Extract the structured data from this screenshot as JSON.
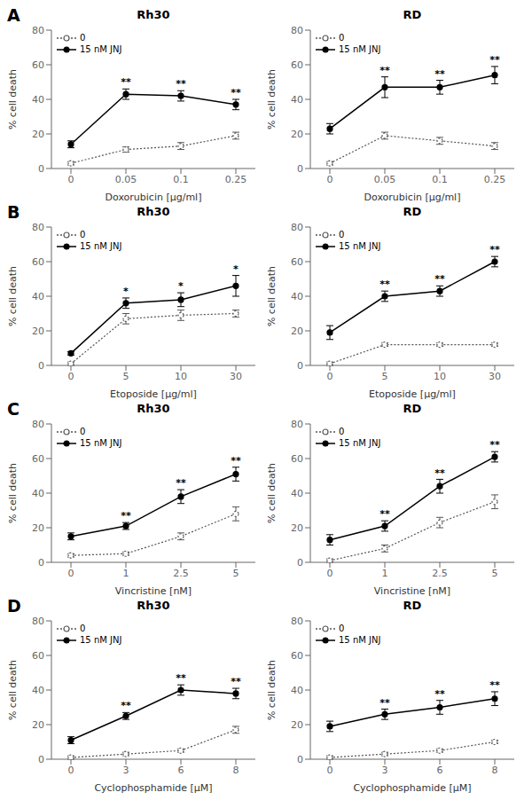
{
  "chart_data": [
    {
      "type": "line",
      "label": "A",
      "title": "Rh30",
      "xlabel": "Doxorubicin [μg/ml]",
      "ylabel": "% cell death",
      "categories": [
        "0",
        "0.05",
        "0.1",
        "0.25"
      ],
      "series": [
        {
          "name": "0",
          "color": "#555555",
          "marker": "ring",
          "line_style": "dotted",
          "values": [
            3,
            11,
            13,
            19
          ],
          "error": [
            1,
            1.5,
            2,
            2
          ]
        },
        {
          "name": "15 nM JNJ",
          "color": "#000000",
          "marker": "circle",
          "line_style": "solid",
          "values": [
            14,
            43,
            42,
            37
          ],
          "error": [
            2,
            3,
            3,
            3
          ]
        }
      ],
      "annotations": [
        {
          "x": "0.05",
          "text": "**",
          "series": "15 nM JNJ"
        },
        {
          "x": "0.1",
          "text": "**",
          "series": "15 nM JNJ"
        },
        {
          "x": "0.25",
          "text": "**",
          "series": "15 nM JNJ"
        }
      ],
      "ylim": [
        0,
        80
      ],
      "yticks": [
        0,
        20,
        40,
        60,
        80
      ],
      "legend": "upper left",
      "grid": false
    },
    {
      "type": "line",
      "title": "RD",
      "xlabel": "Doxorubicin [μg/ml]",
      "ylabel": "% cell death",
      "categories": [
        "0",
        "0.05",
        "0.1",
        "0.25"
      ],
      "series": [
        {
          "name": "0",
          "color": "#555555",
          "marker": "ring",
          "line_style": "dotted",
          "values": [
            3,
            19,
            16,
            13
          ],
          "error": [
            1,
            2,
            2,
            2
          ]
        },
        {
          "name": "15 nM JNJ",
          "color": "#000000",
          "marker": "circle",
          "line_style": "solid",
          "values": [
            23,
            47,
            47,
            54
          ],
          "error": [
            3,
            6,
            4,
            5
          ]
        }
      ],
      "annotations": [
        {
          "x": "0.05",
          "text": "**",
          "series": "15 nM JNJ"
        },
        {
          "x": "0.1",
          "text": "**",
          "series": "15 nM JNJ"
        },
        {
          "x": "0.25",
          "text": "**",
          "series": "15 nM JNJ"
        }
      ],
      "ylim": [
        0,
        80
      ],
      "yticks": [
        0,
        20,
        40,
        60,
        80
      ],
      "legend": "upper left",
      "grid": false
    },
    {
      "type": "line",
      "label": "B",
      "title": "Rh30",
      "xlabel": "Etoposide [μg/ml]",
      "ylabel": "% cell death",
      "categories": [
        "0",
        "5",
        "10",
        "30"
      ],
      "series": [
        {
          "name": "0",
          "color": "#555555",
          "marker": "ring",
          "line_style": "dotted",
          "values": [
            1,
            27,
            29,
            30
          ],
          "error": [
            1,
            3,
            3,
            2
          ]
        },
        {
          "name": "15 nM JNJ",
          "color": "#000000",
          "marker": "circle",
          "line_style": "solid",
          "values": [
            7,
            36,
            38,
            46
          ],
          "error": [
            1,
            3,
            4,
            6
          ]
        }
      ],
      "annotations": [
        {
          "x": "5",
          "text": "*",
          "series": "15 nM JNJ"
        },
        {
          "x": "10",
          "text": "*",
          "series": "15 nM JNJ"
        },
        {
          "x": "30",
          "text": "*",
          "series": "15 nM JNJ"
        }
      ],
      "ylim": [
        0,
        80
      ],
      "yticks": [
        0,
        20,
        40,
        60,
        80
      ],
      "legend": "upper left",
      "grid": false
    },
    {
      "type": "line",
      "title": "RD",
      "xlabel": "Etoposide [μg/ml]",
      "ylabel": "% cell death",
      "categories": [
        "0",
        "5",
        "10",
        "30"
      ],
      "series": [
        {
          "name": "0",
          "color": "#555555",
          "marker": "ring",
          "line_style": "dotted",
          "values": [
            1,
            12,
            12,
            12
          ],
          "error": [
            1,
            1,
            1,
            1
          ]
        },
        {
          "name": "15 nM JNJ",
          "color": "#000000",
          "marker": "circle",
          "line_style": "solid",
          "values": [
            19,
            40,
            43,
            60
          ],
          "error": [
            4,
            3,
            3,
            3
          ]
        }
      ],
      "annotations": [
        {
          "x": "5",
          "text": "**",
          "series": "15 nM JNJ"
        },
        {
          "x": "10",
          "text": "**",
          "series": "15 nM JNJ"
        },
        {
          "x": "30",
          "text": "**",
          "series": "15 nM JNJ"
        }
      ],
      "ylim": [
        0,
        80
      ],
      "yticks": [
        0,
        20,
        40,
        60,
        80
      ],
      "legend": "upper left",
      "grid": false
    },
    {
      "type": "line",
      "label": "C",
      "title": "Rh30",
      "xlabel": "Vincristine [nM]",
      "ylabel": "% cell death",
      "categories": [
        "0",
        "1",
        "2.5",
        "5"
      ],
      "series": [
        {
          "name": "0",
          "color": "#555555",
          "marker": "ring",
          "line_style": "dotted",
          "values": [
            4,
            5,
            15,
            28
          ],
          "error": [
            1,
            1,
            2,
            4
          ]
        },
        {
          "name": "15 nM JNJ",
          "color": "#000000",
          "marker": "circle",
          "line_style": "solid",
          "values": [
            15,
            21,
            38,
            51
          ],
          "error": [
            2,
            2,
            4,
            4
          ]
        }
      ],
      "annotations": [
        {
          "x": "1",
          "text": "**",
          "series": "15 nM JNJ"
        },
        {
          "x": "2.5",
          "text": "**",
          "series": "15 nM JNJ"
        },
        {
          "x": "5",
          "text": "**",
          "series": "15 nM JNJ"
        }
      ],
      "ylim": [
        0,
        80
      ],
      "yticks": [
        0,
        20,
        40,
        60,
        80
      ],
      "legend": "upper left",
      "grid": false
    },
    {
      "type": "line",
      "title": "RD",
      "xlabel": "Vincristine [nM]",
      "ylabel": "% cell death",
      "categories": [
        "0",
        "1",
        "2.5",
        "5"
      ],
      "series": [
        {
          "name": "0",
          "color": "#555555",
          "marker": "ring",
          "line_style": "dotted",
          "values": [
            1,
            8,
            23,
            35
          ],
          "error": [
            1,
            2,
            3,
            4
          ]
        },
        {
          "name": "15 nM JNJ",
          "color": "#000000",
          "marker": "circle",
          "line_style": "solid",
          "values": [
            13,
            21,
            44,
            61
          ],
          "error": [
            3,
            3,
            4,
            3
          ]
        }
      ],
      "annotations": [
        {
          "x": "1",
          "text": "**",
          "series": "15 nM JNJ"
        },
        {
          "x": "2.5",
          "text": "**",
          "series": "15 nM JNJ"
        },
        {
          "x": "5",
          "text": "**",
          "series": "15 nM JNJ"
        }
      ],
      "ylim": [
        0,
        80
      ],
      "yticks": [
        0,
        20,
        40,
        60,
        80
      ],
      "legend": "upper left",
      "grid": false
    },
    {
      "type": "line",
      "label": "D",
      "title": "Rh30",
      "xlabel": "Cyclophosphamide [μM]",
      "ylabel": "% cell death",
      "categories": [
        "0",
        "3",
        "6",
        "8"
      ],
      "series": [
        {
          "name": "0",
          "color": "#555555",
          "marker": "ring",
          "line_style": "dotted",
          "values": [
            1,
            3,
            5,
            17
          ],
          "error": [
            1,
            1,
            1,
            2
          ]
        },
        {
          "name": "15 nM JNJ",
          "color": "#000000",
          "marker": "circle",
          "line_style": "solid",
          "values": [
            11,
            25,
            40,
            38
          ],
          "error": [
            2,
            2,
            3,
            3
          ]
        }
      ],
      "annotations": [
        {
          "x": "3",
          "text": "**",
          "series": "15 nM JNJ"
        },
        {
          "x": "6",
          "text": "**",
          "series": "15 nM JNJ"
        },
        {
          "x": "8",
          "text": "**",
          "series": "15 nM JNJ"
        }
      ],
      "ylim": [
        0,
        80
      ],
      "yticks": [
        0,
        20,
        40,
        60,
        80
      ],
      "legend": "upper left",
      "grid": false
    },
    {
      "type": "line",
      "title": "RD",
      "xlabel": "Cyclophosphamide [μM]",
      "ylabel": "% cell death",
      "categories": [
        "0",
        "3",
        "6",
        "8"
      ],
      "series": [
        {
          "name": "0",
          "color": "#555555",
          "marker": "ring",
          "line_style": "dotted",
          "values": [
            1,
            3,
            5,
            10
          ],
          "error": [
            1,
            1,
            1,
            1
          ]
        },
        {
          "name": "15 nM JNJ",
          "color": "#000000",
          "marker": "circle",
          "line_style": "solid",
          "values": [
            19,
            26,
            30,
            35
          ],
          "error": [
            3,
            3,
            4,
            4
          ]
        }
      ],
      "annotations": [
        {
          "x": "3",
          "text": "**",
          "series": "15 nM JNJ"
        },
        {
          "x": "6",
          "text": "**",
          "series": "15 nM JNJ"
        },
        {
          "x": "8",
          "text": "**",
          "series": "15 nM JNJ"
        }
      ],
      "ylim": [
        0,
        80
      ],
      "yticks": [
        0,
        20,
        40,
        60,
        80
      ],
      "legend": "upper left",
      "grid": false
    }
  ]
}
